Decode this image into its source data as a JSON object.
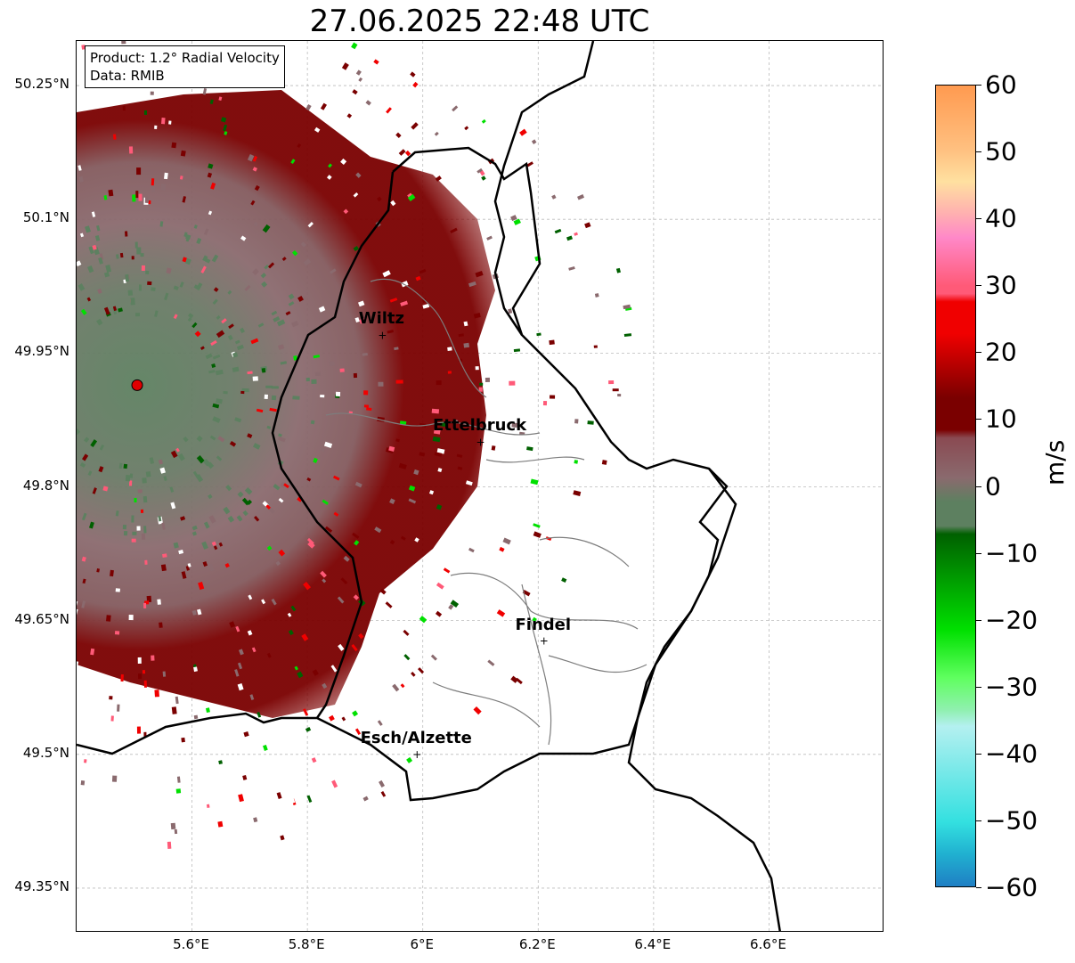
{
  "title": "27.06.2025 22:48 UTC",
  "info_box": {
    "product": "Product: 1.2° Radial Velocity",
    "data": "Data: RMIB"
  },
  "map": {
    "lon_range": [
      5.4,
      6.8
    ],
    "lat_range": [
      49.3,
      50.3
    ],
    "lat_ticks": [
      {
        "value": 50.25,
        "label": "50.25°N"
      },
      {
        "value": 50.1,
        "label": "50.1°N"
      },
      {
        "value": 49.95,
        "label": "49.95°N"
      },
      {
        "value": 49.8,
        "label": "49.8°N"
      },
      {
        "value": 49.65,
        "label": "49.65°N"
      },
      {
        "value": 49.5,
        "label": "49.5°N"
      },
      {
        "value": 49.35,
        "label": "49.35°N"
      }
    ],
    "lon_ticks": [
      {
        "value": 5.6,
        "label": "5.6°E"
      },
      {
        "value": 5.8,
        "label": "5.8°E"
      },
      {
        "value": 6.0,
        "label": "6°E"
      },
      {
        "value": 6.2,
        "label": "6.2°E"
      },
      {
        "value": 6.4,
        "label": "6.4°E"
      },
      {
        "value": 6.6,
        "label": "6.6°E"
      }
    ],
    "radar_site": {
      "lon": 5.505,
      "lat": 49.914
    },
    "cities": [
      {
        "name": "Wiltz",
        "lon": 5.93,
        "lat": 49.97
      },
      {
        "name": "Ettelbruck",
        "lon": 6.1,
        "lat": 49.85
      },
      {
        "name": "Findel",
        "lon": 6.21,
        "lat": 49.627
      },
      {
        "name": "Esch/Alzette",
        "lon": 5.99,
        "lat": 49.5
      }
    ]
  },
  "colorbar": {
    "unit": "m/s",
    "min": -60,
    "max": 60,
    "ticks": [
      "60",
      "50",
      "40",
      "30",
      "20",
      "10",
      "0",
      "−10",
      "−20",
      "−30",
      "−40",
      "−50",
      "−60"
    ]
  },
  "colors": {
    "strong_inbound_blue": "#1f7fc4",
    "cyan": "#33e0e0",
    "light_cyan": "#b4f0f0",
    "green": "#00e000",
    "dark_green": "#006000",
    "zero_grey_green": "#5d8060",
    "zero_grey_red": "#8a6a6e",
    "dark_red": "#7a0000",
    "red": "#f00000",
    "pink": "#ff5a78",
    "light_pink": "#ff88c8",
    "peach": "#ffe0a0",
    "orange": "#ff9a50"
  }
}
